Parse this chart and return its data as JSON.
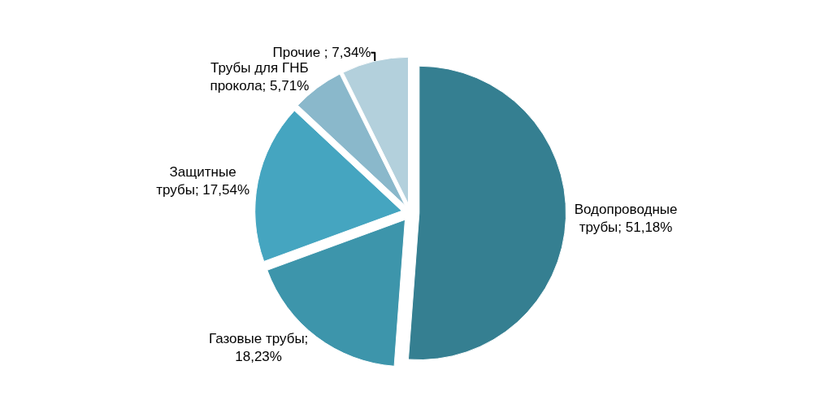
{
  "chart_data": {
    "type": "pie",
    "categories": [
      "Водопроводные трубы; 51,18%",
      "Газовые трубы; 18,23%",
      "Защитные трубы; 17,54%",
      "Трубы для ГНБ прокола; 5,71%",
      "Прочие ; 7,34%"
    ],
    "values": [
      51.18,
      18.23,
      17.54,
      5.71,
      7.34
    ],
    "colors": [
      "#357f91",
      "#3d95ab",
      "#45a5c0",
      "#8ab8cb",
      "#b3d0dc"
    ],
    "legend": false
  }
}
